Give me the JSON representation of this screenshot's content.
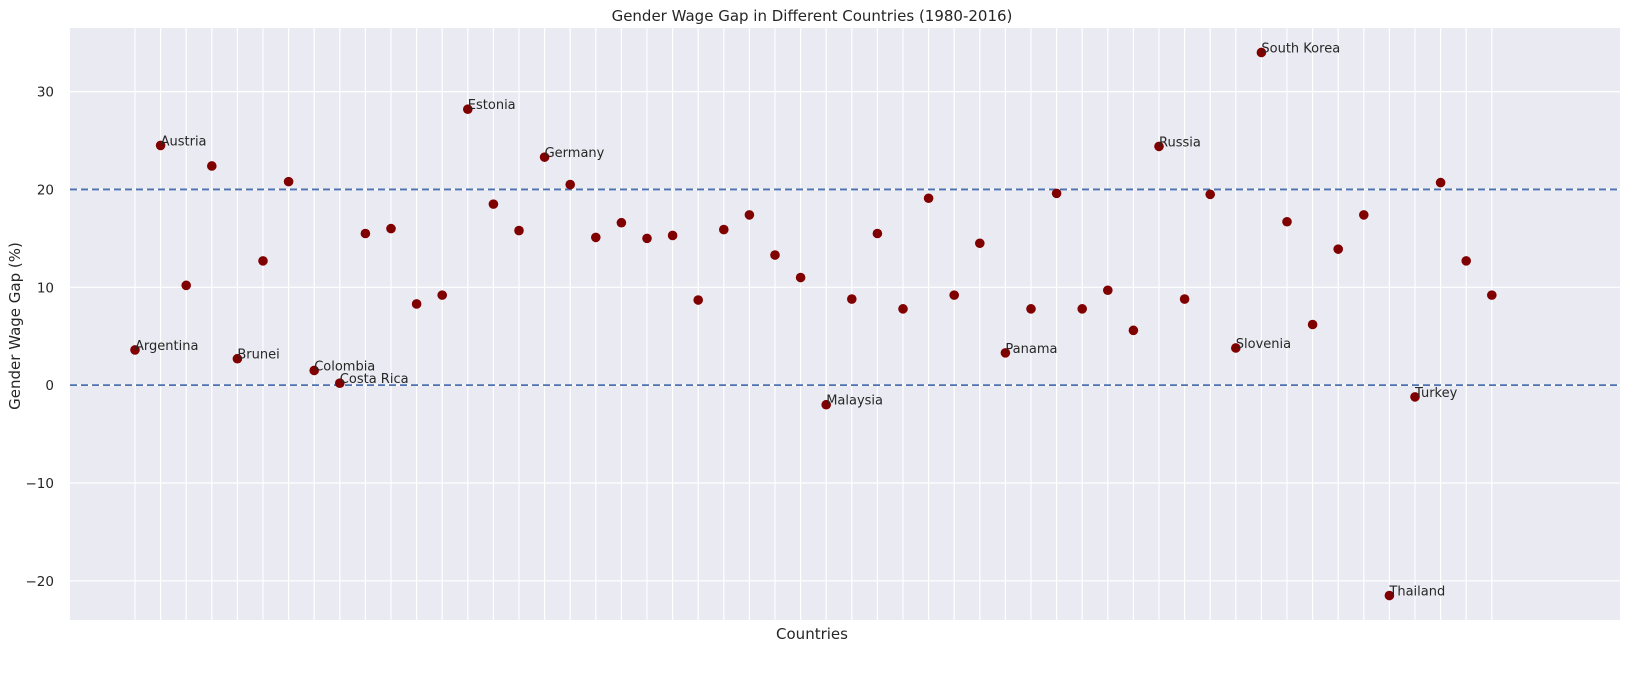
{
  "chart_data": {
    "type": "scatter",
    "title": "Gender Wage Gap in Different Countries (1980-2016)",
    "xlabel": "Countries",
    "ylabel": "Gender Wage Gap (%)",
    "ylim": [
      -24,
      36.5
    ],
    "yticks": [
      -20,
      -10,
      0,
      10,
      20,
      30
    ],
    "ytick_labels": [
      "−20",
      "−10",
      "0",
      "10",
      "20",
      "30"
    ],
    "grid": true,
    "marker_color": "#800000",
    "reference_lines": [
      {
        "y": 20,
        "style": "dashed",
        "color": "#4c72b0"
      },
      {
        "y": 0,
        "style": "dashed",
        "color": "#4c72b0"
      }
    ],
    "points": [
      {
        "country": "Argentina",
        "value": 3.6
      },
      {
        "country": "Austria",
        "value": 24.5
      },
      {
        "country": "",
        "value": 10.2
      },
      {
        "country": "",
        "value": 22.4
      },
      {
        "country": "Brunei",
        "value": 2.7
      },
      {
        "country": "",
        "value": 12.7
      },
      {
        "country": "",
        "value": 20.8
      },
      {
        "country": "Colombia",
        "value": 1.5
      },
      {
        "country": "Costa Rica",
        "value": 0.2
      },
      {
        "country": "",
        "value": 15.5
      },
      {
        "country": "",
        "value": 16.0
      },
      {
        "country": "",
        "value": 8.3
      },
      {
        "country": "",
        "value": 9.2
      },
      {
        "country": "Estonia",
        "value": 28.2
      },
      {
        "country": "",
        "value": 18.5
      },
      {
        "country": "",
        "value": 15.8
      },
      {
        "country": "Germany",
        "value": 23.3
      },
      {
        "country": "",
        "value": 20.5
      },
      {
        "country": "",
        "value": 15.1
      },
      {
        "country": "",
        "value": 16.6
      },
      {
        "country": "",
        "value": 15.0
      },
      {
        "country": "",
        "value": 15.3
      },
      {
        "country": "",
        "value": 8.7
      },
      {
        "country": "",
        "value": 15.9
      },
      {
        "country": "",
        "value": 17.4
      },
      {
        "country": "",
        "value": 13.3
      },
      {
        "country": "",
        "value": 11.0
      },
      {
        "country": "Malaysia",
        "value": -2.0
      },
      {
        "country": "",
        "value": 8.8
      },
      {
        "country": "",
        "value": 15.5
      },
      {
        "country": "",
        "value": 7.8
      },
      {
        "country": "",
        "value": 19.1
      },
      {
        "country": "",
        "value": 9.2
      },
      {
        "country": "",
        "value": 14.5
      },
      {
        "country": "Panama",
        "value": 3.3
      },
      {
        "country": "",
        "value": 7.8
      },
      {
        "country": "",
        "value": 19.6
      },
      {
        "country": "",
        "value": 7.8
      },
      {
        "country": "",
        "value": 9.7
      },
      {
        "country": "",
        "value": 5.6
      },
      {
        "country": "Russia",
        "value": 24.4
      },
      {
        "country": "",
        "value": 8.8
      },
      {
        "country": "",
        "value": 19.5
      },
      {
        "country": "Slovenia",
        "value": 3.8
      },
      {
        "country": "South Korea",
        "value": 34.0
      },
      {
        "country": "",
        "value": 16.7
      },
      {
        "country": "",
        "value": 6.2
      },
      {
        "country": "",
        "value": 13.9
      },
      {
        "country": "",
        "value": 17.4
      },
      {
        "country": "Thailand",
        "value": -21.5
      },
      {
        "country": "Turkey",
        "value": -1.2
      },
      {
        "country": "",
        "value": 20.7
      },
      {
        "country": "",
        "value": 12.7
      },
      {
        "country": "",
        "value": 9.2
      }
    ]
  }
}
